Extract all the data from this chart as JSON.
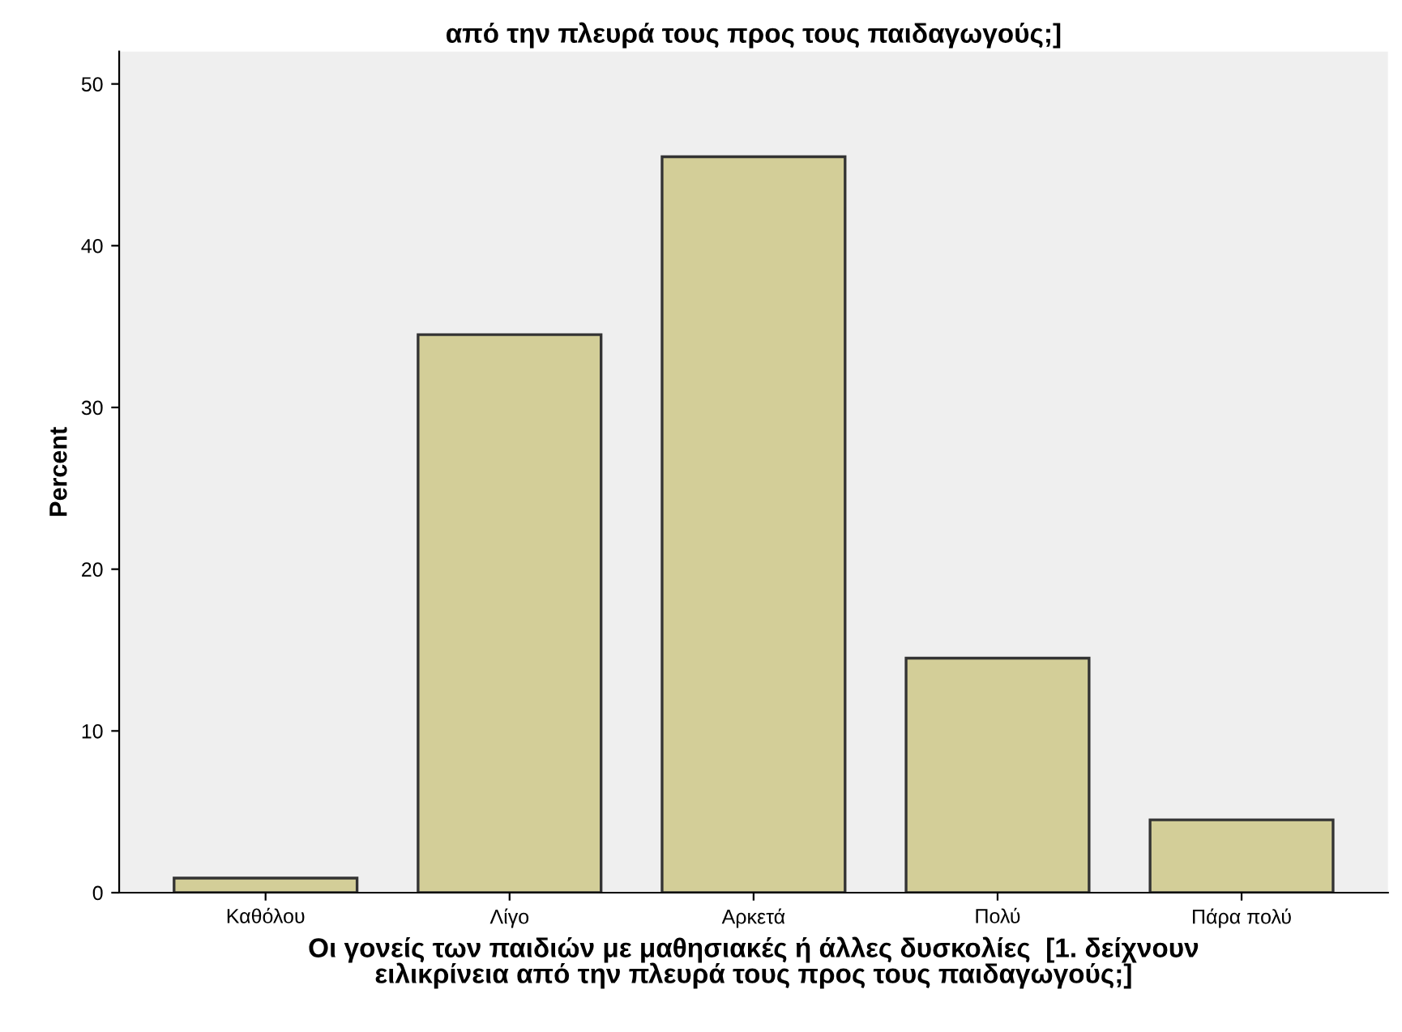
{
  "chart_data": {
    "type": "bar",
    "title": "από την πλευρά τους προς τους παιδαγωγούς;]",
    "xlabel": "Οι γονείς των παιδιών με μαθησιακές ή άλλες δυσκολίες  [1. δείχνουν\nειλικρίνεια από την πλευρά τους προς τους παιδαγωγούς;]",
    "ylabel": "Percent",
    "categories": [
      "Καθόλου",
      "Λίγο",
      "Αρκετά",
      "Πολύ",
      "Πάρα πολύ"
    ],
    "values": [
      0.9,
      34.5,
      45.5,
      14.5,
      4.5
    ],
    "color": "#d3ce98",
    "ylim": [
      0,
      52
    ],
    "yticks": [
      0,
      10,
      20,
      30,
      40,
      50
    ],
    "grid": false
  }
}
